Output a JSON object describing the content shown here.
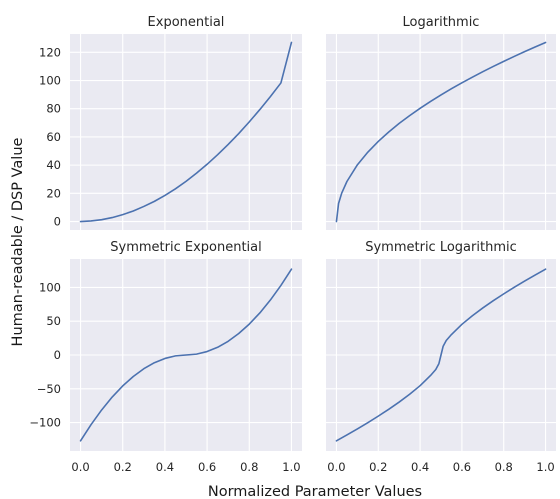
{
  "figure": {
    "xlabel": "Normalized Parameter Values",
    "ylabel": "Human-readable / DSP Value"
  },
  "colors": {
    "panel_bg": "#eaeaf2",
    "line": "#4c72b0",
    "grid": "#ffffff",
    "text": "#262626"
  },
  "chart_data": [
    {
      "type": "line",
      "title": "Exponential",
      "xlim": [
        0,
        1
      ],
      "ylim": [
        -6,
        133
      ],
      "xticks": [
        "0.0",
        "0.2",
        "0.4",
        "0.6",
        "0.8",
        "1.0"
      ],
      "yticks": [
        "0",
        "20",
        "40",
        "60",
        "80",
        "100",
        "120"
      ],
      "x": [
        0.0,
        0.05,
        0.1,
        0.15,
        0.2,
        0.25,
        0.3,
        0.35,
        0.4,
        0.45,
        0.5,
        0.55,
        0.6,
        0.65,
        0.7,
        0.75,
        0.8,
        0.85,
        0.9,
        0.95,
        1.0
      ],
      "values": [
        0,
        0.4,
        1.3,
        2.8,
        4.9,
        7.5,
        10.7,
        14.3,
        18.5,
        23.2,
        28.5,
        34.3,
        40.6,
        47.4,
        54.7,
        62.4,
        70.7,
        79.4,
        88.6,
        98.3,
        127
      ]
    },
    {
      "type": "line",
      "title": "Logarithmic",
      "xlim": [
        0,
        1
      ],
      "ylim": [
        -6,
        133
      ],
      "xticks": [
        "0.0",
        "0.2",
        "0.4",
        "0.6",
        "0.8",
        "1.0"
      ],
      "yticks": [],
      "x": [
        0.0,
        0.01,
        0.025,
        0.05,
        0.1,
        0.15,
        0.2,
        0.25,
        0.3,
        0.35,
        0.4,
        0.45,
        0.5,
        0.55,
        0.6,
        0.65,
        0.7,
        0.75,
        0.8,
        0.85,
        0.9,
        0.95,
        1.0
      ],
      "values": [
        0,
        12.8,
        20.1,
        28.4,
        40.2,
        49.2,
        56.8,
        63.5,
        69.6,
        75.1,
        80.3,
        85.2,
        89.8,
        94.2,
        98.4,
        102.4,
        106.3,
        110.0,
        113.6,
        117.1,
        120.5,
        123.8,
        127
      ]
    },
    {
      "type": "line",
      "title": "Symmetric Exponential",
      "xlim": [
        0,
        1
      ],
      "ylim": [
        -142,
        142
      ],
      "xticks": [
        "0.0",
        "0.2",
        "0.4",
        "0.6",
        "0.8",
        "1.0"
      ],
      "yticks": [
        "100",
        "50",
        "0",
        "−50",
        "−100"
      ],
      "x": [
        0.0,
        0.05,
        0.1,
        0.15,
        0.2,
        0.25,
        0.3,
        0.35,
        0.4,
        0.45,
        0.5,
        0.55,
        0.6,
        0.65,
        0.7,
        0.75,
        0.8,
        0.85,
        0.9,
        0.95,
        1.0
      ],
      "values": [
        -127,
        -102.9,
        -81.3,
        -62.2,
        -45.7,
        -31.8,
        -20.3,
        -11.4,
        -5.1,
        -1.3,
        0,
        1.3,
        5.1,
        11.4,
        20.3,
        31.8,
        45.7,
        62.2,
        81.3,
        102.9,
        127
      ]
    },
    {
      "type": "line",
      "title": "Symmetric Logarithmic",
      "xlim": [
        0,
        1
      ],
      "ylim": [
        -142,
        142
      ],
      "xticks": [
        "0.0",
        "0.2",
        "0.4",
        "0.6",
        "0.8",
        "1.0"
      ],
      "yticks": [],
      "x": [
        0.0,
        0.05,
        0.1,
        0.15,
        0.2,
        0.25,
        0.3,
        0.35,
        0.4,
        0.45,
        0.475,
        0.49,
        0.5,
        0.51,
        0.525,
        0.55,
        0.6,
        0.65,
        0.7,
        0.75,
        0.8,
        0.85,
        0.9,
        0.95,
        1.0
      ],
      "values": [
        -127,
        -118.3,
        -109.4,
        -100.1,
        -90.4,
        -80.3,
        -69.6,
        -58.1,
        -45.4,
        -30.3,
        -21.4,
        -12.7,
        0,
        12.7,
        21.4,
        30.3,
        45.4,
        58.1,
        69.6,
        80.3,
        90.4,
        100.1,
        109.4,
        118.3,
        127
      ]
    }
  ]
}
